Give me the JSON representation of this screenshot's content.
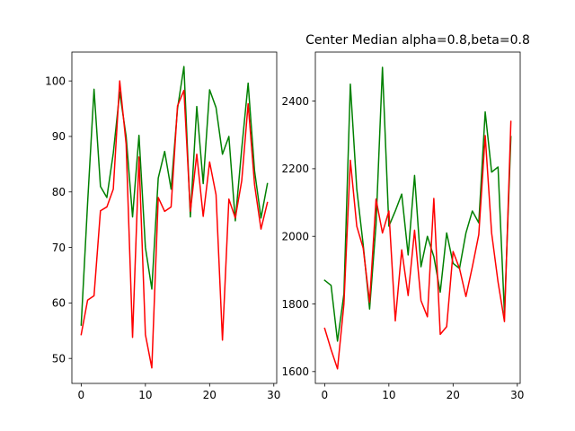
{
  "chart_data": [
    {
      "type": "line",
      "title": "",
      "xlabel": "",
      "ylabel": "",
      "xlim": [
        -1.45,
        30.45
      ],
      "ylim": [
        45.5,
        105.2
      ],
      "xticks": [
        0,
        10,
        20,
        30
      ],
      "yticks": [
        50,
        60,
        70,
        80,
        90,
        100
      ],
      "x": [
        0,
        1,
        2,
        3,
        4,
        5,
        6,
        7,
        8,
        9,
        10,
        11,
        12,
        13,
        14,
        15,
        16,
        17,
        18,
        19,
        20,
        21,
        22,
        23,
        24,
        25,
        26,
        27,
        28,
        29
      ],
      "series": [
        {
          "color": "#008000",
          "values": [
            56,
            78,
            98.5,
            81,
            79,
            87,
            98,
            90,
            75.5,
            90.2,
            70,
            62.5,
            82.5,
            87.3,
            80.5,
            95,
            102.6,
            75.5,
            95.4,
            81.5,
            98.4,
            95.2,
            86.8,
            90,
            74.8,
            87.8,
            99.6,
            83.8,
            75.3,
            81.5
          ]
        },
        {
          "color": "#ff0000",
          "values": [
            54.3,
            60.5,
            61.3,
            76.6,
            77.3,
            80.5,
            100,
            88.6,
            53.8,
            86.3,
            54.3,
            48.3,
            79,
            76.5,
            77.3,
            95.5,
            98.3,
            76.5,
            86.8,
            75.6,
            85.4,
            79.5,
            53.3,
            78.7,
            75.3,
            82,
            95.9,
            81.3,
            73.3,
            78.1
          ]
        }
      ]
    },
    {
      "type": "line",
      "title": "Center Median alpha=0.8,beta=0.8",
      "xlabel": "",
      "ylabel": "",
      "xlim": [
        -1.45,
        30.45
      ],
      "ylim": [
        1565,
        2545
      ],
      "xticks": [
        0,
        10,
        20,
        30
      ],
      "yticks": [
        1600,
        1800,
        2000,
        2200,
        2400
      ],
      "x": [
        0,
        1,
        2,
        3,
        4,
        5,
        6,
        7,
        8,
        9,
        10,
        11,
        12,
        13,
        14,
        15,
        16,
        17,
        18,
        19,
        20,
        21,
        22,
        23,
        24,
        25,
        26,
        27,
        28,
        29
      ],
      "series": [
        {
          "color": "#008000",
          "values": [
            1870,
            1855,
            1690,
            1830,
            2450,
            2140,
            1975,
            1785,
            2035,
            2500,
            2030,
            2075,
            2125,
            1945,
            2180,
            1910,
            2000,
            1940,
            1835,
            2010,
            1920,
            1905,
            2010,
            2075,
            2040,
            2368,
            2190,
            2205,
            1770,
            2295
          ]
        },
        {
          "color": "#ff0000",
          "values": [
            1728,
            1665,
            1608,
            1800,
            2225,
            2030,
            1965,
            1805,
            2110,
            2010,
            2075,
            1750,
            1960,
            1825,
            2018,
            1810,
            1762,
            2112,
            1710,
            1733,
            1955,
            1905,
            1822,
            1910,
            2005,
            2298,
            2010,
            1865,
            1748,
            2340
          ]
        }
      ]
    }
  ]
}
